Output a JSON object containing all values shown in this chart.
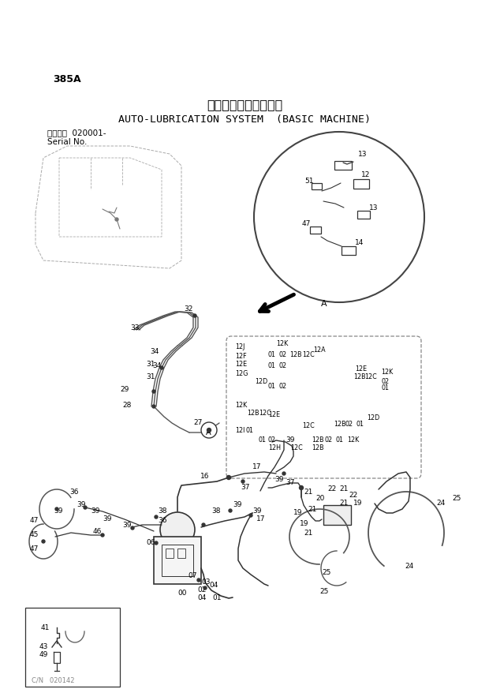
{
  "title_jp": "自動給脂装置（本体）",
  "title_en": "AUTO-LUBRICATION SYSTEM  (BASIC MACHINE)",
  "serial_line1": "適用号機  020001-",
  "serial_line2": "Serial No.",
  "part_number": "385A",
  "background": "#ffffff",
  "text_color": "#000000",
  "line_color": "#444444",
  "diagram_color": "#333333",
  "light_color": "#888888"
}
